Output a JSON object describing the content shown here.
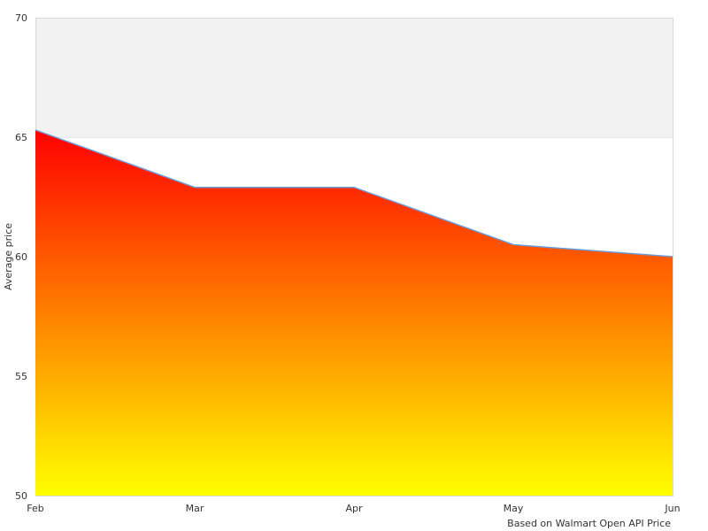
{
  "chart_data": {
    "type": "area",
    "categories": [
      "Feb",
      "Mar",
      "Apr",
      "May",
      "Jun"
    ],
    "series": [
      {
        "values": [
          65.3,
          62.9,
          62.9,
          60.5,
          60.0
        ]
      }
    ],
    "ylim": [
      50,
      70
    ],
    "yticks": [
      "50",
      "55",
      "60",
      "65",
      "70"
    ],
    "ylabel": "Average price",
    "xlabel": "",
    "title": "",
    "grid": true,
    "band": {
      "from": 65,
      "to": 70,
      "color": "#f2f2f2"
    },
    "fill_gradient": {
      "top": "#ff0000",
      "bottom": "#ffff00"
    },
    "line_color": "#6b9bd6",
    "source": "Based on Walmart Open API Price"
  }
}
